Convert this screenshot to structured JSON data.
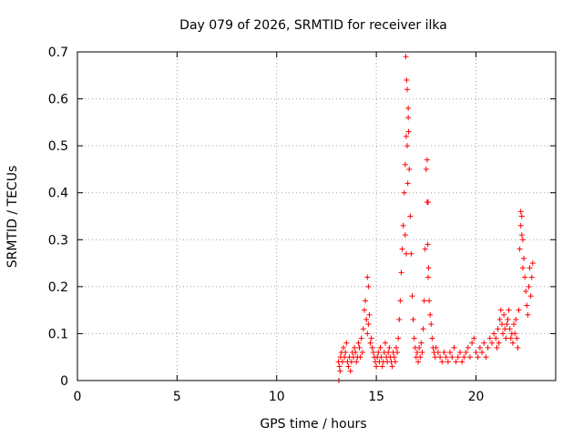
{
  "chart_data": {
    "type": "scatter",
    "title": "Day 079 of 2026, SRMTID for receiver ilka",
    "xlabel": "GPS time / hours",
    "ylabel": "SRMTID / TECUs",
    "xlim": [
      0,
      24
    ],
    "ylim": [
      0,
      0.7
    ],
    "xticks": [
      0,
      5,
      10,
      15,
      20
    ],
    "yticks": [
      0,
      0.1,
      0.2,
      0.3,
      0.4,
      0.5,
      0.6,
      0.7
    ],
    "xtick_labels": [
      "0",
      "5",
      "10",
      "15",
      "20"
    ],
    "ytick_labels": [
      "0",
      "0.1",
      "0.2",
      "0.3",
      "0.4",
      "0.5",
      "0.6",
      "0.7"
    ],
    "grid": true,
    "marker": "+",
    "color": "#ff0000",
    "series": [
      {
        "name": "SRMTID",
        "x": [
          13.1,
          13.15,
          13.2,
          13.25,
          13.3,
          13.35,
          13.4,
          13.45,
          13.5,
          13.55,
          13.6,
          13.65,
          13.7,
          13.75,
          13.8,
          13.85,
          13.9,
          13.95,
          14.0,
          14.05,
          14.1,
          14.15,
          14.2,
          14.25,
          14.3,
          14.35,
          14.4,
          14.45,
          14.5,
          14.55,
          14.6,
          14.65,
          14.7,
          14.75,
          14.8,
          14.85,
          14.9,
          14.95,
          15.0,
          15.05,
          15.1,
          15.15,
          15.2,
          15.25,
          15.3,
          15.35,
          15.4,
          15.45,
          15.5,
          15.55,
          15.6,
          15.65,
          15.7,
          15.75,
          15.8,
          15.85,
          15.9,
          15.95,
          16.0,
          16.05,
          16.1,
          16.15,
          16.2,
          16.25,
          16.3,
          16.35,
          16.4,
          16.45,
          16.5,
          16.55,
          16.6,
          16.65,
          16.7,
          16.75,
          16.8,
          16.85,
          16.9,
          16.95,
          17.0,
          17.05,
          17.1,
          17.15,
          17.2,
          17.25,
          17.3,
          17.35,
          17.4,
          17.45,
          17.5,
          17.55,
          17.6,
          17.65,
          17.7,
          17.75,
          17.8,
          17.85,
          17.9,
          17.95,
          18.0,
          18.1,
          18.2,
          18.3,
          18.4,
          18.5,
          18.6,
          18.7,
          18.8,
          18.9,
          19.0,
          19.1,
          19.2,
          19.3,
          19.4,
          19.5,
          19.6,
          19.7,
          19.8,
          19.9,
          20.0,
          20.1,
          20.2,
          20.3,
          20.4,
          20.5,
          20.6,
          20.7,
          20.8,
          20.9,
          21.0,
          21.05,
          21.1,
          21.15,
          21.2,
          21.25,
          21.3,
          21.35,
          21.4,
          21.45,
          21.5,
          21.55,
          21.6,
          21.65,
          21.7,
          21.75,
          21.8,
          21.85,
          21.9,
          21.95,
          22.0,
          22.05,
          22.1,
          22.15,
          22.2,
          22.25,
          22.3,
          22.35,
          22.4,
          22.45,
          22.5,
          22.55,
          22.6,
          22.65,
          22.7,
          22.75,
          22.8,
          22.85,
          16.48,
          16.52,
          16.55,
          16.58,
          16.45,
          16.5,
          17.55,
          17.6,
          17.58,
          17.62,
          22.25,
          22.3,
          22.35,
          14.55,
          14.6,
          16.6,
          16.62,
          13.12,
          13.18
        ],
        "y": [
          0.04,
          0.03,
          0.05,
          0.06,
          0.04,
          0.07,
          0.05,
          0.06,
          0.08,
          0.04,
          0.03,
          0.05,
          0.02,
          0.04,
          0.06,
          0.05,
          0.07,
          0.06,
          0.04,
          0.05,
          0.08,
          0.07,
          0.05,
          0.09,
          0.06,
          0.11,
          0.15,
          0.17,
          0.13,
          0.1,
          0.12,
          0.14,
          0.08,
          0.09,
          0.07,
          0.06,
          0.05,
          0.04,
          0.03,
          0.05,
          0.06,
          0.04,
          0.07,
          0.05,
          0.03,
          0.04,
          0.06,
          0.08,
          0.05,
          0.04,
          0.06,
          0.07,
          0.05,
          0.04,
          0.03,
          0.06,
          0.05,
          0.04,
          0.07,
          0.06,
          0.09,
          0.13,
          0.17,
          0.23,
          0.28,
          0.33,
          0.4,
          0.46,
          0.52,
          0.62,
          0.56,
          0.45,
          0.35,
          0.27,
          0.18,
          0.13,
          0.09,
          0.07,
          0.05,
          0.06,
          0.04,
          0.07,
          0.05,
          0.08,
          0.06,
          0.11,
          0.17,
          0.28,
          0.45,
          0.38,
          0.22,
          0.17,
          0.14,
          0.12,
          0.09,
          0.07,
          0.06,
          0.05,
          0.07,
          0.06,
          0.05,
          0.04,
          0.06,
          0.05,
          0.04,
          0.06,
          0.05,
          0.07,
          0.04,
          0.05,
          0.06,
          0.04,
          0.05,
          0.06,
          0.07,
          0.05,
          0.08,
          0.09,
          0.06,
          0.05,
          0.07,
          0.06,
          0.08,
          0.05,
          0.07,
          0.09,
          0.08,
          0.1,
          0.09,
          0.07,
          0.11,
          0.08,
          0.13,
          0.15,
          0.12,
          0.1,
          0.14,
          0.11,
          0.09,
          0.12,
          0.13,
          0.15,
          0.11,
          0.09,
          0.1,
          0.08,
          0.12,
          0.1,
          0.13,
          0.09,
          0.07,
          0.15,
          0.28,
          0.33,
          0.35,
          0.3,
          0.26,
          0.22,
          0.19,
          0.16,
          0.14,
          0.2,
          0.24,
          0.18,
          0.22,
          0.25,
          0.69,
          0.64,
          0.5,
          0.42,
          0.31,
          0.27,
          0.47,
          0.38,
          0.29,
          0.24,
          0.36,
          0.31,
          0.24,
          0.22,
          0.2,
          0.58,
          0.53,
          0.0,
          0.02
        ]
      }
    ]
  }
}
